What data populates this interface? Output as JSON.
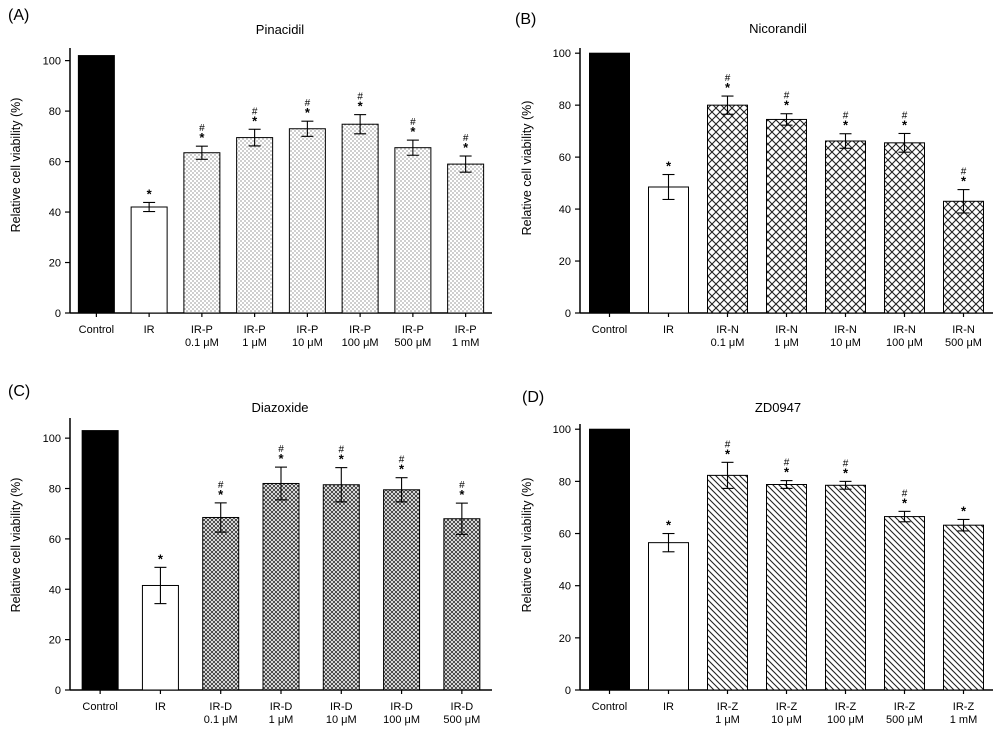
{
  "chart_data": [
    {
      "type": "bar",
      "panel_label": "(A)",
      "title": "Pinacidil",
      "ylabel": "Relative cell viability (%)",
      "ylim": [
        0,
        105
      ],
      "yticks": [
        "0",
        "20",
        "40",
        "60",
        "80",
        "100"
      ],
      "categories": [
        {
          "line1": "Control",
          "line2": ""
        },
        {
          "line1": "IR",
          "line2": ""
        },
        {
          "line1": "IR-P",
          "line2": "0.1 μM"
        },
        {
          "line1": "IR-P",
          "line2": "1 μM"
        },
        {
          "line1": "IR-P",
          "line2": "10 μM"
        },
        {
          "line1": "IR-P",
          "line2": "100 μM"
        },
        {
          "line1": "IR-P",
          "line2": "500 μM"
        },
        {
          "line1": "IR-P",
          "line2": "1 mM"
        }
      ],
      "values": [
        102,
        42,
        63.5,
        69.5,
        73,
        74.8,
        65.5,
        59
      ],
      "errors": [
        0,
        1.8,
        2.6,
        3.3,
        3.0,
        3.8,
        3.0,
        3.2
      ],
      "star": [
        false,
        true,
        true,
        true,
        true,
        true,
        true,
        true
      ],
      "hash": [
        false,
        false,
        true,
        true,
        true,
        true,
        true,
        true
      ],
      "star_symbol": "*",
      "hash_symbol": "#",
      "fills": [
        "solid",
        "none",
        "dots",
        "dots",
        "dots",
        "dots",
        "dots",
        "dots"
      ],
      "grid": false
    },
    {
      "type": "bar",
      "panel_label": "(B)",
      "title": "Nicorandil",
      "ylabel": "Relative cell viability (%)",
      "ylim": [
        0,
        102
      ],
      "yticks": [
        "0",
        "20",
        "40",
        "60",
        "80",
        "100"
      ],
      "categories": [
        {
          "line1": "Control",
          "line2": ""
        },
        {
          "line1": "IR",
          "line2": ""
        },
        {
          "line1": "IR-N",
          "line2": "0.1 μM"
        },
        {
          "line1": "IR-N",
          "line2": "1 μM"
        },
        {
          "line1": "IR-N",
          "line2": "10 μM"
        },
        {
          "line1": "IR-N",
          "line2": "100 μM"
        },
        {
          "line1": "IR-N",
          "line2": "500 μM"
        }
      ],
      "values": [
        100,
        48.5,
        80,
        74.5,
        66.2,
        65.5,
        43
      ],
      "errors": [
        0,
        4.8,
        3.5,
        2.2,
        2.8,
        3.6,
        4.5
      ],
      "star": [
        false,
        true,
        true,
        true,
        true,
        true,
        true
      ],
      "hash": [
        false,
        false,
        true,
        true,
        true,
        true,
        true
      ],
      "star_symbol": "*",
      "hash_symbol": "#",
      "fills": [
        "solid",
        "none",
        "crosshatch",
        "crosshatch",
        "crosshatch",
        "crosshatch",
        "crosshatch"
      ],
      "grid": false
    },
    {
      "type": "bar",
      "panel_label": "(C)",
      "title": "Diazoxide",
      "ylabel": "Relative cell viability (%)",
      "ylim": [
        0,
        108
      ],
      "yticks": [
        "0",
        "20",
        "40",
        "60",
        "80",
        "100"
      ],
      "categories": [
        {
          "line1": "Control",
          "line2": ""
        },
        {
          "line1": "IR",
          "line2": ""
        },
        {
          "line1": "IR-D",
          "line2": "0.1 μM"
        },
        {
          "line1": "IR-D",
          "line2": "1 μM"
        },
        {
          "line1": "IR-D",
          "line2": "10 μM"
        },
        {
          "line1": "IR-D",
          "line2": "100 μM"
        },
        {
          "line1": "IR-D",
          "line2": "500 μM"
        }
      ],
      "values": [
        103,
        41.5,
        68.5,
        82,
        81.5,
        79.5,
        68
      ],
      "errors": [
        0,
        7.2,
        5.8,
        6.5,
        6.8,
        4.8,
        6.2
      ],
      "star": [
        false,
        true,
        true,
        true,
        true,
        true,
        true
      ],
      "hash": [
        false,
        false,
        true,
        true,
        true,
        true,
        true
      ],
      "star_symbol": "*",
      "hash_symbol": "#",
      "fills": [
        "solid",
        "none",
        "grid",
        "grid",
        "grid",
        "grid",
        "grid"
      ],
      "grid": false
    },
    {
      "type": "bar",
      "panel_label": "(D)",
      "title": "ZD0947",
      "ylabel": "Relative cell viability (%)",
      "ylim": [
        0,
        102
      ],
      "yticks": [
        "0",
        "20",
        "40",
        "60",
        "80",
        "100"
      ],
      "categories": [
        {
          "line1": "Control",
          "line2": ""
        },
        {
          "line1": "IR",
          "line2": ""
        },
        {
          "line1": "IR-Z",
          "line2": "1 μM"
        },
        {
          "line1": "IR-Z",
          "line2": "10 μM"
        },
        {
          "line1": "IR-Z",
          "line2": "100 μM"
        },
        {
          "line1": "IR-Z",
          "line2": "500 μM"
        },
        {
          "line1": "IR-Z",
          "line2": "1 mM"
        }
      ],
      "values": [
        100,
        56.5,
        82.3,
        78.8,
        78.5,
        66.5,
        63.2
      ],
      "errors": [
        0,
        3.5,
        5.0,
        1.5,
        1.5,
        2.0,
        2.2
      ],
      "star": [
        false,
        true,
        true,
        true,
        true,
        true,
        true
      ],
      "hash": [
        false,
        false,
        true,
        true,
        true,
        true,
        false
      ],
      "star_symbol": "*",
      "hash_symbol": "#",
      "fills": [
        "solid",
        "none",
        "diagonal",
        "diagonal",
        "diagonal",
        "diagonal",
        "diagonal"
      ],
      "grid": false
    }
  ]
}
